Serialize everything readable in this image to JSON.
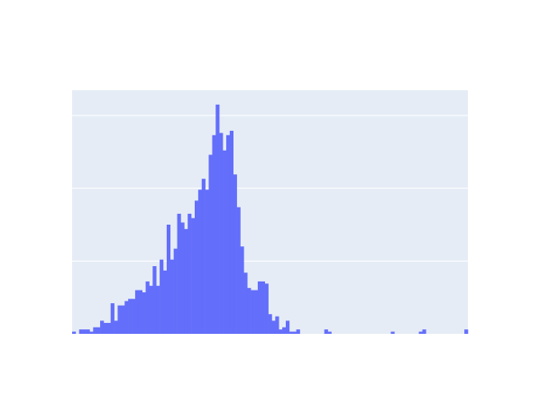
{
  "chart_data": {
    "type": "bar",
    "subtype": "histogram",
    "title": "",
    "xlabel": "",
    "ylabel": "",
    "ylim": [
      0,
      100
    ],
    "grid": true,
    "legend": "none",
    "colors": {
      "bar": "#636efa",
      "plot_background": "#e5ecf6",
      "grid": "#ffffff"
    },
    "values": [
      1,
      0,
      2,
      2,
      2,
      1,
      3,
      3,
      6,
      5,
      5,
      14,
      6,
      13,
      13,
      15,
      16,
      16,
      20,
      20,
      19,
      24,
      22,
      31,
      22,
      34,
      29,
      50,
      34,
      39,
      55,
      51,
      48,
      55,
      53,
      61,
      66,
      71,
      66,
      82,
      91,
      105,
      92,
      84,
      91,
      93,
      73,
      58,
      40,
      28,
      21,
      20,
      20,
      24,
      24,
      23,
      9,
      6,
      8,
      2,
      3,
      6,
      1,
      1,
      2,
      0,
      0,
      0,
      0,
      0,
      0,
      0,
      2,
      1,
      0,
      0,
      0,
      0,
      0,
      0,
      0,
      0,
      0,
      0,
      0,
      0,
      0,
      0,
      0,
      0,
      0,
      1,
      0,
      0,
      0,
      0,
      0,
      0,
      0,
      1,
      2,
      0,
      0,
      0,
      0,
      0,
      0,
      0,
      0,
      0,
      0,
      0,
      2
    ]
  }
}
